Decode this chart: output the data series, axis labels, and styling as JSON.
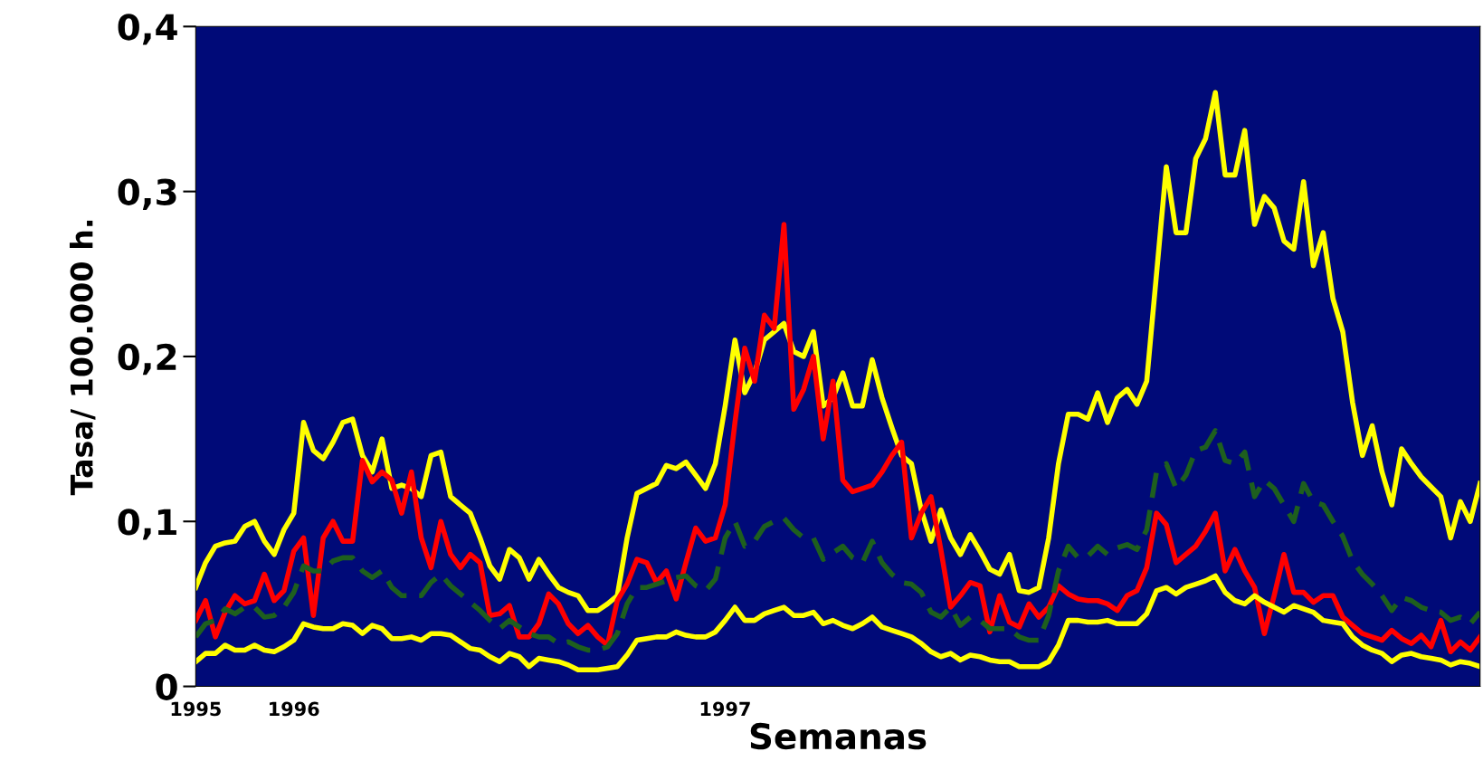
{
  "chart_data": {
    "type": "line",
    "xlabel": "Semanas",
    "ylabel": "Tasa/ 100.000 h.",
    "categories": [
      "1995",
      null,
      null,
      null,
      null,
      null,
      null,
      null,
      null,
      null,
      "1996",
      null,
      null,
      null,
      null,
      null,
      null,
      null,
      null,
      null,
      null,
      null,
      null,
      null,
      null,
      null,
      null,
      null,
      null,
      null,
      null,
      null,
      null,
      null,
      null,
      null,
      null,
      null,
      null,
      null,
      null,
      null,
      null,
      null,
      null,
      null,
      null,
      null,
      null,
      null,
      null,
      null,
      null,
      null,
      "1997",
      null,
      null,
      null,
      null,
      null,
      null,
      null,
      null,
      null,
      null,
      null,
      null,
      null,
      null,
      null,
      null,
      null,
      null,
      null,
      null,
      null,
      null,
      null,
      null,
      null,
      null,
      null,
      null,
      null,
      null,
      null,
      null,
      null,
      null,
      null,
      null,
      null,
      null,
      null,
      null,
      null,
      null,
      null,
      null,
      null,
      null,
      null,
      null,
      null,
      null,
      null,
      null,
      null,
      null,
      null,
      null,
      null,
      null,
      null,
      null,
      null,
      null,
      null,
      null,
      null,
      null,
      null,
      null,
      null,
      null,
      null,
      null,
      null,
      null,
      null,
      null,
      null
    ],
    "ylim": [
      0,
      0.4
    ],
    "yticks": [
      0,
      {
        "value": 0.1,
        "label": "0,1"
      },
      {
        "value": 0.2,
        "label": "0,2"
      },
      {
        "value": 0.3,
        "label": "0,3"
      },
      {
        "value": 0.4,
        "label": "0,4"
      }
    ],
    "grid": false,
    "legend": false,
    "marker": "none",
    "series": [
      {
        "color": "#ffff00",
        "line_style": "solid",
        "values": [
          0.06,
          0.075,
          0.085,
          0.087,
          0.088,
          0.097,
          0.1,
          0.088,
          0.08,
          0.095,
          0.105,
          0.16,
          0.143,
          0.138,
          0.148,
          0.16,
          0.162,
          0.14,
          0.13,
          0.15,
          0.12,
          0.122,
          0.12,
          0.115,
          0.14,
          0.142,
          0.115,
          0.11,
          0.105,
          0.09,
          0.073,
          0.065,
          0.083,
          0.078,
          0.065,
          0.077,
          0.068,
          0.06,
          0.057,
          0.055,
          0.046,
          0.046,
          0.05,
          0.055,
          0.09,
          0.117,
          0.12,
          0.123,
          0.134,
          0.132,
          0.136,
          0.128,
          0.12,
          0.135,
          0.17,
          0.21,
          0.178,
          0.19,
          0.21,
          0.215,
          0.22,
          0.203,
          0.2,
          0.215,
          0.17,
          0.175,
          0.19,
          0.17,
          0.17,
          0.198,
          0.175,
          0.157,
          0.14,
          0.135,
          0.107,
          0.088,
          0.107,
          0.09,
          0.08,
          0.092,
          0.082,
          0.071,
          0.068,
          0.08,
          0.058,
          0.057,
          0.06,
          0.09,
          0.135,
          0.165,
          0.165,
          0.162,
          0.178,
          0.16,
          0.175,
          0.18,
          0.171,
          0.185,
          0.25,
          0.315,
          0.275,
          0.275,
          0.32,
          0.332,
          0.36,
          0.31,
          0.31,
          0.337,
          0.28,
          0.297,
          0.29,
          0.27,
          0.265,
          0.306,
          0.255,
          0.275,
          0.235,
          0.215,
          0.172,
          0.14,
          0.158,
          0.13,
          0.11,
          0.144,
          0.135,
          0.127,
          0.121,
          0.115,
          0.09,
          0.112,
          0.1,
          0.123
        ]
      },
      {
        "color": "#ff0000",
        "line_style": "solid",
        "values": [
          0.04,
          0.052,
          0.03,
          0.045,
          0.055,
          0.05,
          0.052,
          0.068,
          0.052,
          0.058,
          0.082,
          0.09,
          0.043,
          0.09,
          0.1,
          0.088,
          0.088,
          0.137,
          0.124,
          0.13,
          0.125,
          0.105,
          0.13,
          0.09,
          0.072,
          0.1,
          0.08,
          0.072,
          0.08,
          0.075,
          0.043,
          0.044,
          0.049,
          0.03,
          0.03,
          0.038,
          0.056,
          0.05,
          0.038,
          0.032,
          0.037,
          0.03,
          0.025,
          0.052,
          0.062,
          0.077,
          0.075,
          0.063,
          0.07,
          0.053,
          0.075,
          0.096,
          0.088,
          0.09,
          0.11,
          0.16,
          0.205,
          0.185,
          0.225,
          0.217,
          0.28,
          0.168,
          0.18,
          0.2,
          0.15,
          0.185,
          0.125,
          0.118,
          0.12,
          0.122,
          0.13,
          0.14,
          0.148,
          0.09,
          0.105,
          0.115,
          0.083,
          0.048,
          0.055,
          0.063,
          0.061,
          0.033,
          0.055,
          0.039,
          0.036,
          0.05,
          0.042,
          0.048,
          0.061,
          0.056,
          0.053,
          0.052,
          0.052,
          0.05,
          0.046,
          0.055,
          0.058,
          0.072,
          0.105,
          0.098,
          0.075,
          0.08,
          0.085,
          0.094,
          0.105,
          0.07,
          0.083,
          0.07,
          0.06,
          0.032,
          0.055,
          0.08,
          0.057,
          0.057,
          0.051,
          0.055,
          0.055,
          0.042,
          0.037,
          0.032,
          0.03,
          0.028,
          0.034,
          0.029,
          0.026,
          0.031,
          0.024,
          0.04,
          0.021,
          0.027,
          0.022,
          0.03
        ]
      },
      {
        "color": "#1e5f1e",
        "line_style": "dashed",
        "values": [
          0.03,
          0.038,
          0.04,
          0.047,
          0.044,
          0.048,
          0.048,
          0.042,
          0.043,
          0.048,
          0.057,
          0.073,
          0.07,
          0.07,
          0.076,
          0.078,
          0.078,
          0.07,
          0.066,
          0.07,
          0.06,
          0.055,
          0.055,
          0.055,
          0.063,
          0.068,
          0.061,
          0.056,
          0.051,
          0.046,
          0.04,
          0.035,
          0.04,
          0.036,
          0.032,
          0.03,
          0.03,
          0.026,
          0.027,
          0.024,
          0.022,
          0.022,
          0.024,
          0.032,
          0.05,
          0.06,
          0.06,
          0.062,
          0.064,
          0.066,
          0.067,
          0.061,
          0.058,
          0.065,
          0.09,
          0.1,
          0.085,
          0.088,
          0.097,
          0.1,
          0.102,
          0.095,
          0.09,
          0.09,
          0.077,
          0.081,
          0.085,
          0.078,
          0.075,
          0.088,
          0.075,
          0.068,
          0.063,
          0.062,
          0.057,
          0.045,
          0.042,
          0.048,
          0.037,
          0.042,
          0.04,
          0.035,
          0.035,
          0.035,
          0.03,
          0.028,
          0.028,
          0.043,
          0.07,
          0.085,
          0.078,
          0.079,
          0.085,
          0.08,
          0.084,
          0.086,
          0.083,
          0.095,
          0.13,
          0.135,
          0.12,
          0.128,
          0.143,
          0.145,
          0.155,
          0.137,
          0.135,
          0.142,
          0.115,
          0.125,
          0.12,
          0.11,
          0.1,
          0.123,
          0.112,
          0.11,
          0.1,
          0.091,
          0.076,
          0.068,
          0.062,
          0.055,
          0.046,
          0.054,
          0.052,
          0.048,
          0.046,
          0.045,
          0.04,
          0.042,
          0.038,
          0.045
        ]
      },
      {
        "color": "#ffff00",
        "line_style": "solid",
        "values": [
          0.015,
          0.02,
          0.02,
          0.025,
          0.022,
          0.022,
          0.025,
          0.022,
          0.021,
          0.024,
          0.028,
          0.038,
          0.036,
          0.035,
          0.035,
          0.038,
          0.037,
          0.032,
          0.037,
          0.035,
          0.029,
          0.029,
          0.03,
          0.028,
          0.032,
          0.032,
          0.031,
          0.027,
          0.023,
          0.022,
          0.018,
          0.015,
          0.02,
          0.018,
          0.012,
          0.017,
          0.016,
          0.015,
          0.013,
          0.01,
          0.01,
          0.01,
          0.011,
          0.012,
          0.019,
          0.028,
          0.029,
          0.03,
          0.03,
          0.033,
          0.031,
          0.03,
          0.03,
          0.033,
          0.04,
          0.048,
          0.04,
          0.04,
          0.044,
          0.046,
          0.048,
          0.043,
          0.043,
          0.045,
          0.038,
          0.04,
          0.037,
          0.035,
          0.038,
          0.042,
          0.036,
          0.034,
          0.032,
          0.03,
          0.026,
          0.021,
          0.018,
          0.02,
          0.016,
          0.019,
          0.018,
          0.016,
          0.015,
          0.015,
          0.012,
          0.012,
          0.012,
          0.015,
          0.025,
          0.04,
          0.04,
          0.039,
          0.039,
          0.04,
          0.038,
          0.038,
          0.038,
          0.044,
          0.058,
          0.06,
          0.056,
          0.06,
          0.062,
          0.064,
          0.067,
          0.057,
          0.052,
          0.05,
          0.055,
          0.051,
          0.048,
          0.045,
          0.049,
          0.047,
          0.045,
          0.04,
          0.039,
          0.038,
          0.03,
          0.025,
          0.022,
          0.02,
          0.015,
          0.019,
          0.02,
          0.018,
          0.017,
          0.016,
          0.013,
          0.015,
          0.014,
          0.012
        ]
      }
    ]
  }
}
